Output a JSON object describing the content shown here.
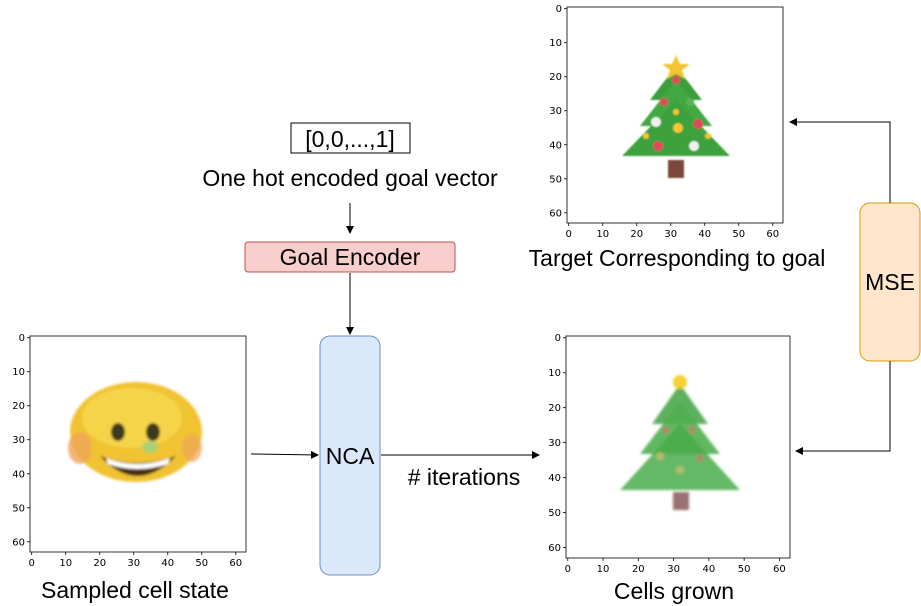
{
  "goal_vector": {
    "text": "[0,0,...,1]",
    "label": "One hot encoded goal vector"
  },
  "goal_encoder": {
    "label": "Goal Encoder",
    "fill": "#f8cecc",
    "stroke": "#b85450"
  },
  "nca": {
    "label": "NCA",
    "fill": "#dae8fc",
    "stroke": "#6c8ebf"
  },
  "mse": {
    "label": "MSE",
    "fill": "#ffe6cc",
    "stroke": "#d79b00"
  },
  "iterations_label": "# iterations",
  "panels": {
    "sampled": {
      "caption": "Sampled cell state",
      "picture": "smiling-emoji-icon",
      "x_ticks": [
        "0",
        "10",
        "20",
        "30",
        "40",
        "50",
        "60"
      ],
      "y_ticks": [
        "0",
        "10",
        "20",
        "30",
        "40",
        "50",
        "60"
      ]
    },
    "target": {
      "caption": "Target Corresponding to goal",
      "picture": "christmas-tree-icon",
      "x_ticks": [
        "0",
        "10",
        "20",
        "30",
        "40",
        "50",
        "60"
      ],
      "y_ticks": [
        "0",
        "10",
        "20",
        "30",
        "40",
        "50",
        "60"
      ]
    },
    "grown": {
      "caption": "Cells grown",
      "picture": "christmas-tree-icon",
      "x_ticks": [
        "0",
        "10",
        "20",
        "30",
        "40",
        "50",
        "60"
      ],
      "y_ticks": [
        "0",
        "10",
        "20",
        "30",
        "40",
        "50",
        "60"
      ]
    }
  }
}
